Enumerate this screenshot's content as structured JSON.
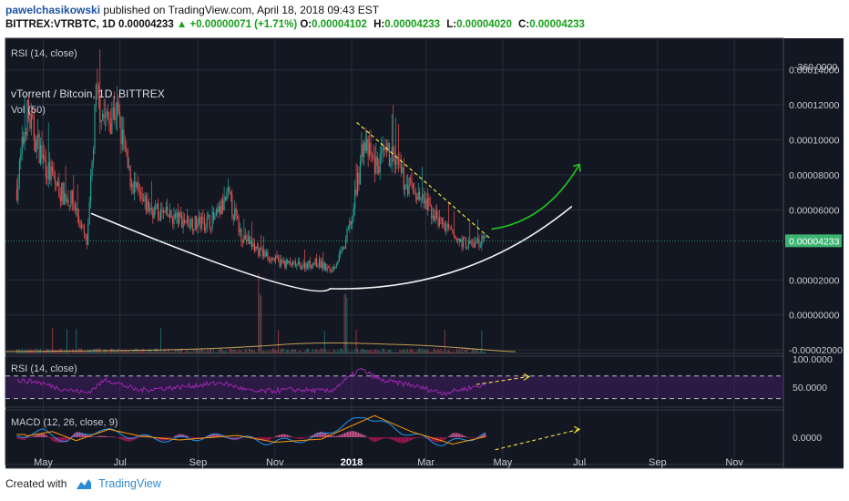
{
  "header": {
    "author": "pawelchasikowski",
    "published_text": " published on TradingView.com, April 18, 2018 09:43 EST",
    "symbol": "BITTREX:VTRBTC, 1D",
    "last": "0.00004233",
    "change": "▲ +0.00000071 (+1.71%)",
    "o_label": "O:",
    "o_value": "0.00004102",
    "h_label": "H:",
    "h_value": "0.00004233",
    "l_label": "L:",
    "l_value": "0.00004020",
    "c_label": "C:",
    "c_value": "0.00004233"
  },
  "footer": {
    "created_with": "Created with",
    "brand": "TradingView"
  },
  "colors": {
    "background": "#131722",
    "grid": "#2a2e39",
    "up": "#26a69a",
    "down": "#ef5350",
    "rsi_line": "#9c27b0",
    "macd_line": "#2196f3",
    "signal_line": "#ff9800",
    "annotation_yellow": "#f5e63b",
    "arrow_green": "#21c521",
    "curve": "#f2f2f2",
    "last_price_tag": "#3cb371"
  },
  "chart_data": [
    {
      "type": "candlestick",
      "title": "vTorrent / Bitcoin, 1D, BITTREX",
      "volume_label": "Vol (50)",
      "top_rsi_label": "RSI (14, close)",
      "top_rsi_tick": "-360.0000",
      "y_ticks": [
        "0.00014000",
        "0.00012000",
        "0.00010000",
        "0.00008000",
        "0.00006000",
        "0.00002000",
        "0.00000000",
        "-0.00002000"
      ],
      "y_tick_values": [
        0.00014,
        0.00012,
        0.0001,
        8e-05,
        6e-05,
        2e-05,
        0.0,
        -2e-05
      ],
      "ylim": [
        -2.2e-05,
        0.000158
      ],
      "x_ticks": [
        "May",
        "Jul",
        "Sep",
        "Nov",
        "2018",
        "Mar",
        "May",
        "Jul",
        "Sep",
        "Nov"
      ],
      "x_tick_months": [
        "2017-05",
        "2017-07",
        "2017-09",
        "2017-11",
        "2018-01",
        "2018-03",
        "2018-05",
        "2018-07",
        "2018-09",
        "2018-11"
      ],
      "last_price": "0.00004233",
      "last_price_value": 4.233e-05,
      "close_path": [
        [
          "2017-04-10",
          7.2e-05
        ],
        [
          "2017-04-18",
          0.000115
        ],
        [
          "2017-04-25",
          0.0001
        ],
        [
          "2017-05-05",
          8.2e-05
        ],
        [
          "2017-05-15",
          7e-05
        ],
        [
          "2017-05-25",
          6.4e-05
        ],
        [
          "2017-06-05",
          4e-05
        ],
        [
          "2017-06-12",
          0.000125
        ],
        [
          "2017-06-20",
          0.00011
        ],
        [
          "2017-06-28",
          0.000118
        ],
        [
          "2017-07-08",
          8e-05
        ],
        [
          "2017-07-18",
          6.4e-05
        ],
        [
          "2017-08-01",
          5.8e-05
        ],
        [
          "2017-08-15",
          5.5e-05
        ],
        [
          "2017-09-01",
          5.2e-05
        ],
        [
          "2017-09-15",
          5.5e-05
        ],
        [
          "2017-09-25",
          6.8e-05
        ],
        [
          "2017-10-05",
          4.6e-05
        ],
        [
          "2017-10-20",
          3.6e-05
        ],
        [
          "2017-11-05",
          3e-05
        ],
        [
          "2017-11-20",
          2.8e-05
        ],
        [
          "2017-12-05",
          3e-05
        ],
        [
          "2017-12-15",
          2.5e-05
        ],
        [
          "2017-12-25",
          3.6e-05
        ],
        [
          "2018-01-02",
          5.8e-05
        ],
        [
          "2018-01-10",
          9.8e-05
        ],
        [
          "2018-01-20",
          8.5e-05
        ],
        [
          "2018-02-01",
          9.2e-05
        ],
        [
          "2018-02-10",
          7.8e-05
        ],
        [
          "2018-02-25",
          6.6e-05
        ],
        [
          "2018-03-10",
          5.5e-05
        ],
        [
          "2018-03-25",
          4.3e-05
        ],
        [
          "2018-04-05",
          4e-05
        ],
        [
          "2018-04-18",
          4.233e-05
        ]
      ],
      "annotations": {
        "downtrend_line": [
          [
            "2018-01-05",
            0.00011
          ],
          [
            "2018-04-22",
            4.3e-05
          ]
        ],
        "rounding_bottom": [
          [
            "2017-06-08",
            5.8e-05
          ],
          [
            "2017-12-15",
            1.5e-05
          ],
          [
            "2018-06-25",
            6.2e-05
          ]
        ],
        "projection_arrow": [
          [
            "2018-04-22",
            4.9e-05
          ],
          [
            "2018-07-01",
            8.6e-05
          ]
        ]
      }
    },
    {
      "type": "line",
      "title": "RSI (14, close)",
      "y_ticks": [
        "100.0000",
        "50.0000"
      ],
      "y_tick_values": [
        100,
        50
      ],
      "ylim": [
        15,
        105
      ],
      "bands": [
        70,
        30
      ],
      "rsi_path": [
        [
          "2017-04-10",
          62
        ],
        [
          "2017-04-25",
          60
        ],
        [
          "2017-05-15",
          48
        ],
        [
          "2017-06-05",
          40
        ],
        [
          "2017-06-20",
          64
        ],
        [
          "2017-07-15",
          45
        ],
        [
          "2017-08-15",
          50
        ],
        [
          "2017-09-20",
          58
        ],
        [
          "2017-10-15",
          42
        ],
        [
          "2017-11-15",
          46
        ],
        [
          "2017-12-15",
          43
        ],
        [
          "2018-01-08",
          82
        ],
        [
          "2018-01-25",
          62
        ],
        [
          "2018-02-15",
          55
        ],
        [
          "2018-03-15",
          40
        ],
        [
          "2018-04-18",
          55
        ]
      ],
      "arrow": [
        [
          "2018-04-10",
          55
        ],
        [
          "2018-05-22",
          69
        ]
      ]
    },
    {
      "type": "line",
      "title": "MACD (12, 26, close, 9)",
      "y_ticks": [
        "0.0000"
      ],
      "y_tick_values": [
        0
      ],
      "ylim": [
        -1.2,
        1.2
      ],
      "macd_path": [
        [
          "2017-04-10",
          0.05
        ],
        [
          "2017-05-01",
          0.25
        ],
        [
          "2017-05-20",
          -0.15
        ],
        [
          "2017-06-15",
          0.35
        ],
        [
          "2017-07-10",
          0.05
        ],
        [
          "2017-08-10",
          -0.12
        ],
        [
          "2017-09-25",
          0.08
        ],
        [
          "2017-10-25",
          -0.22
        ],
        [
          "2017-12-01",
          -0.08
        ],
        [
          "2018-01-12",
          0.95
        ],
        [
          "2018-02-10",
          0.25
        ],
        [
          "2018-03-15",
          -0.3
        ],
        [
          "2018-04-18",
          0.12
        ]
      ],
      "arrow": [
        [
          "2018-04-25",
          -0.55
        ],
        [
          "2018-07-01",
          0.35
        ]
      ]
    }
  ]
}
